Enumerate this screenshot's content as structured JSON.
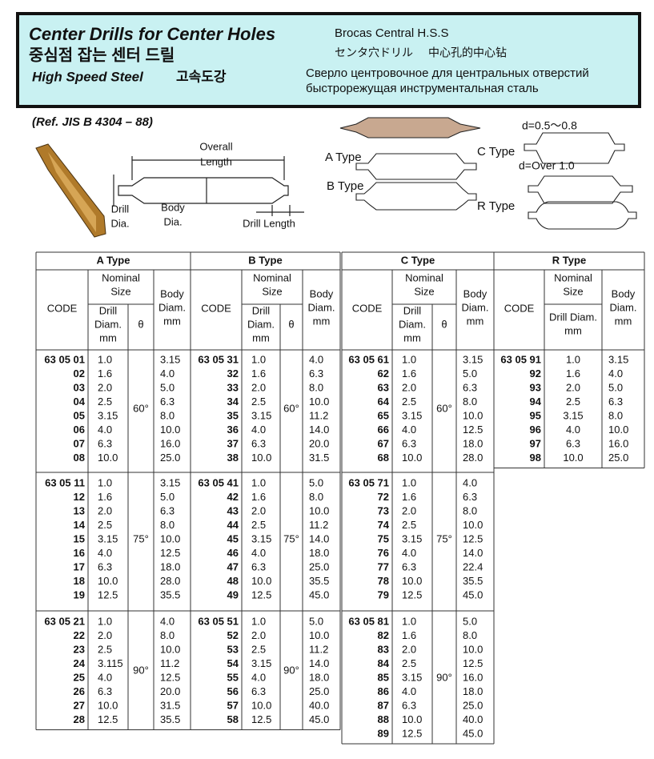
{
  "header": {
    "title": "Center Drills for Center Holes",
    "title_ko": "중심점 잡는 센터 드릴",
    "material": "High Speed Steel",
    "material_ko": "고속도강",
    "spanish": "Brocas Central H.S.S",
    "japanese": "センタ穴ドリル",
    "chinese": "中心孔的中心钻",
    "russian_1": "Сверло центровочное для центральных отверстий",
    "russian_2": "быстрорежущая инструментальная сталь"
  },
  "reference": "(Ref. JIS B 4304 – 88)",
  "diagram": {
    "overall_length": [
      "Overall",
      "Length"
    ],
    "drill_dia": [
      "Drill",
      "Dia."
    ],
    "body_dia": [
      "Body",
      "Dia."
    ],
    "drill_length": "Drill Length",
    "a_type": "A Type",
    "b_type": "B Type",
    "c_type": "C Type",
    "r_type": "R Type",
    "c_small": "d=0.5～0.8",
    "c_large": "d=Over 1.0"
  },
  "tables": [
    {
      "title": "A Type",
      "code": "CODE",
      "nominal": [
        "Nominal",
        "Size"
      ],
      "drill": [
        "Drill",
        "Diam.",
        "mm"
      ],
      "theta": "θ",
      "body": [
        "Body",
        "Diam.",
        "mm"
      ],
      "groups": [
        {
          "angle": "60°",
          "rows": [
            [
              "63 05 01",
              "1.0",
              "3.15"
            ],
            [
              "02",
              "1.6",
              "4.0"
            ],
            [
              "03",
              "2.0",
              "5.0"
            ],
            [
              "04",
              "2.5",
              "6.3"
            ],
            [
              "05",
              "3.15",
              "8.0"
            ],
            [
              "06",
              "4.0",
              "10.0"
            ],
            [
              "07",
              "6.3",
              "16.0"
            ],
            [
              "08",
              "10.0",
              "25.0"
            ]
          ]
        },
        {
          "angle": "75°",
          "rows": [
            [
              "63 05 11",
              "1.0",
              "3.15"
            ],
            [
              "12",
              "1.6",
              "5.0"
            ],
            [
              "13",
              "2.0",
              "6.3"
            ],
            [
              "14",
              "2.5",
              "8.0"
            ],
            [
              "15",
              "3.15",
              "10.0"
            ],
            [
              "16",
              "4.0",
              "12.5"
            ],
            [
              "17",
              "6.3",
              "18.0"
            ],
            [
              "18",
              "10.0",
              "28.0"
            ],
            [
              "19",
              "12.5",
              "35.5"
            ]
          ]
        },
        {
          "angle": "90°",
          "rows": [
            [
              "63 05 21",
              "1.0",
              "4.0"
            ],
            [
              "22",
              "2.0",
              "8.0"
            ],
            [
              "23",
              "2.5",
              "10.0"
            ],
            [
              "24",
              "3.115",
              "11.2"
            ],
            [
              "25",
              "4.0",
              "12.5"
            ],
            [
              "26",
              "6.3",
              "20.0"
            ],
            [
              "27",
              "10.0",
              "31.5"
            ],
            [
              "28",
              "12.5",
              "35.5"
            ]
          ]
        }
      ]
    },
    {
      "title": "B Type",
      "code": "CODE",
      "nominal": [
        "Nominal",
        "Size"
      ],
      "drill": [
        "Drill",
        "Diam.",
        "mm"
      ],
      "theta": "θ",
      "body": [
        "Body",
        "Diam.",
        "mm"
      ],
      "groups": [
        {
          "angle": "60°",
          "rows": [
            [
              "63 05 31",
              "1.0",
              "4.0"
            ],
            [
              "32",
              "1.6",
              "6.3"
            ],
            [
              "33",
              "2.0",
              "8.0"
            ],
            [
              "34",
              "2.5",
              "10.0"
            ],
            [
              "35",
              "3.15",
              "11.2"
            ],
            [
              "36",
              "4.0",
              "14.0"
            ],
            [
              "37",
              "6.3",
              "20.0"
            ],
            [
              "38",
              "10.0",
              "31.5"
            ]
          ]
        },
        {
          "angle": "75°",
          "rows": [
            [
              "63 05 41",
              "1.0",
              "5.0"
            ],
            [
              "42",
              "1.6",
              "8.0"
            ],
            [
              "43",
              "2.0",
              "10.0"
            ],
            [
              "44",
              "2.5",
              "11.2"
            ],
            [
              "45",
              "3.15",
              "14.0"
            ],
            [
              "46",
              "4.0",
              "18.0"
            ],
            [
              "47",
              "6.3",
              "25.0"
            ],
            [
              "48",
              "10.0",
              "35.5"
            ],
            [
              "49",
              "12.5",
              "45.0"
            ]
          ]
        },
        {
          "angle": "90°",
          "rows": [
            [
              "63 05 51",
              "1.0",
              "5.0"
            ],
            [
              "52",
              "2.0",
              "10.0"
            ],
            [
              "53",
              "2.5",
              "11.2"
            ],
            [
              "54",
              "3.15",
              "14.0"
            ],
            [
              "55",
              "4.0",
              "18.0"
            ],
            [
              "56",
              "6.3",
              "25.0"
            ],
            [
              "57",
              "10.0",
              "40.0"
            ],
            [
              "58",
              "12.5",
              "45.0"
            ]
          ]
        }
      ]
    },
    {
      "title": "C Type",
      "code": "CODE",
      "nominal": [
        "Nominal",
        "Size"
      ],
      "drill": [
        "Drill",
        "Diam.",
        "mm"
      ],
      "theta": "θ",
      "body": [
        "Body",
        "Diam.",
        "mm"
      ],
      "groups": [
        {
          "angle": "60°",
          "rows": [
            [
              "63 05 61",
              "1.0",
              "3.15"
            ],
            [
              "62",
              "1.6",
              "5.0"
            ],
            [
              "63",
              "2.0",
              "6.3"
            ],
            [
              "64",
              "2.5",
              "8.0"
            ],
            [
              "65",
              "3.15",
              "10.0"
            ],
            [
              "66",
              "4.0",
              "12.5"
            ],
            [
              "67",
              "6.3",
              "18.0"
            ],
            [
              "68",
              "10.0",
              "28.0"
            ]
          ]
        },
        {
          "angle": "75°",
          "rows": [
            [
              "63 05 71",
              "1.0",
              "4.0"
            ],
            [
              "72",
              "1.6",
              "6.3"
            ],
            [
              "73",
              "2.0",
              "8.0"
            ],
            [
              "74",
              "2.5",
              "10.0"
            ],
            [
              "75",
              "3.15",
              "12.5"
            ],
            [
              "76",
              "4.0",
              "14.0"
            ],
            [
              "77",
              "6.3",
              "22.4"
            ],
            [
              "78",
              "10.0",
              "35.5"
            ],
            [
              "79",
              "12.5",
              "45.0"
            ]
          ]
        },
        {
          "angle": "90°",
          "rows": [
            [
              "63 05 81",
              "1.0",
              "5.0"
            ],
            [
              "82",
              "1.6",
              "8.0"
            ],
            [
              "83",
              "2.0",
              "10.0"
            ],
            [
              "84",
              "2.5",
              "12.5"
            ],
            [
              "85",
              "3.15",
              "16.0"
            ],
            [
              "86",
              "4.0",
              "18.0"
            ],
            [
              "87",
              "6.3",
              "25.0"
            ],
            [
              "88",
              "10.0",
              "40.0"
            ],
            [
              "89",
              "12.5",
              "45.0"
            ]
          ]
        }
      ]
    },
    {
      "title": "R Type",
      "code": "CODE",
      "nominal": [
        "Nominal",
        "Size"
      ],
      "drill": [
        "Drill Diam.",
        "mm"
      ],
      "body": [
        "Body",
        "Diam.",
        "mm"
      ],
      "groups": [
        {
          "rows": [
            [
              "63 05 91",
              "1.0",
              "3.15"
            ],
            [
              "92",
              "1.6",
              "4.0"
            ],
            [
              "93",
              "2.0",
              "5.0"
            ],
            [
              "94",
              "2.5",
              "6.3"
            ],
            [
              "95",
              "3.15",
              "8.0"
            ],
            [
              "96",
              "4.0",
              "10.0"
            ],
            [
              "97",
              "6.3",
              "16.0"
            ],
            [
              "98",
              "10.0",
              "25.0"
            ]
          ]
        }
      ]
    }
  ]
}
